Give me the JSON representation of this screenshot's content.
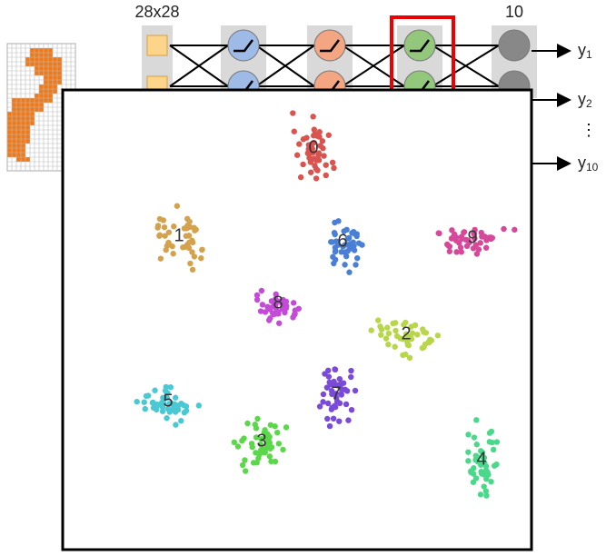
{
  "network": {
    "input_label": "28x28",
    "output_label": "10",
    "outputs": [
      {
        "symbol": "y",
        "index": "1"
      },
      {
        "symbol": "y",
        "index": "2"
      },
      {
        "symbol": "y",
        "index": "10"
      }
    ],
    "ellipsis": "⋮"
  },
  "embedding": {
    "clusters": [
      {
        "label": "0",
        "color": "#d9534f"
      },
      {
        "label": "1",
        "color": "#d4a24c"
      },
      {
        "label": "2",
        "color": "#b8d64a"
      },
      {
        "label": "3",
        "color": "#5ad84a"
      },
      {
        "label": "4",
        "color": "#4ad88a"
      },
      {
        "label": "5",
        "color": "#4ac8d4"
      },
      {
        "label": "6",
        "color": "#4a7fd6"
      },
      {
        "label": "7",
        "color": "#7a4ad8"
      },
      {
        "label": "8",
        "color": "#c44ad8"
      },
      {
        "label": "9",
        "color": "#d8489a"
      }
    ]
  }
}
